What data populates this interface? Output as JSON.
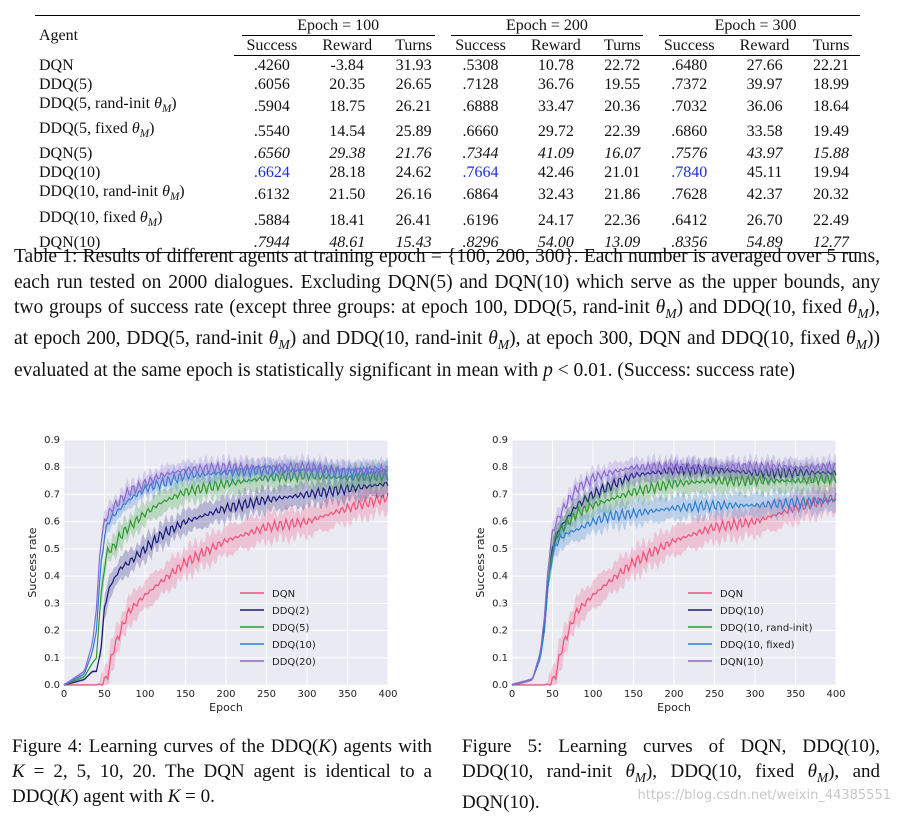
{
  "table": {
    "agent_header": "Agent",
    "groups": [
      "Epoch = 100",
      "Epoch = 200",
      "Epoch = 300"
    ],
    "subheaders": [
      "Success",
      "Reward",
      "Turns"
    ],
    "rows": [
      {
        "agent": "DQN",
        "vals": [
          ".4260",
          "-3.84",
          "31.93",
          ".5308",
          "10.78",
          "22.72",
          ".6480",
          "27.66",
          "22.21"
        ],
        "italic": false
      },
      {
        "agent": "DDQ(5)",
        "vals": [
          ".6056",
          "20.35",
          "26.65",
          ".7128",
          "36.76",
          "19.55",
          ".7372",
          "39.97",
          "18.99"
        ],
        "italic": false
      },
      {
        "agent": "DDQ(5, rand-init θ_M)",
        "vals": [
          ".5904",
          "18.75",
          "26.21",
          ".6888",
          "33.47",
          "20.36",
          ".7032",
          "36.06",
          "18.64"
        ],
        "italic": false
      },
      {
        "agent": "DDQ(5, fixed θ_M)",
        "vals": [
          ".5540",
          "14.54",
          "25.89",
          ".6660",
          "29.72",
          "22.39",
          ".6860",
          "33.58",
          "19.49"
        ],
        "italic": false
      },
      {
        "agent": "DQN(5)",
        "vals": [
          ".6560",
          "29.38",
          "21.76",
          ".7344",
          "41.09",
          "16.07",
          ".7576",
          "43.97",
          "15.88"
        ],
        "italic": true
      },
      {
        "agent": "DDQ(10)",
        "vals": [
          ".6624",
          "28.18",
          "24.62",
          ".7664",
          "42.46",
          "21.01",
          ".7840",
          "45.11",
          "19.94"
        ],
        "italic": false,
        "best": [
          0,
          3,
          6
        ]
      },
      {
        "agent": "DDQ(10, rand-init θ_M)",
        "vals": [
          ".6132",
          "21.50",
          "26.16",
          ".6864",
          "32.43",
          "21.86",
          ".7628",
          "42.37",
          "20.32"
        ],
        "italic": false
      },
      {
        "agent": "DDQ(10, fixed θ_M)",
        "vals": [
          ".5884",
          "18.41",
          "26.41",
          ".6196",
          "24.17",
          "22.36",
          ".6412",
          "26.70",
          "22.49"
        ],
        "italic": false
      },
      {
        "agent": "DQN(10)",
        "vals": [
          ".7944",
          "48.61",
          "15.43",
          ".8296",
          "54.00",
          "13.09",
          ".8356",
          "54.89",
          "12.77"
        ],
        "italic": true
      }
    ]
  },
  "caption": {
    "table": "Table 1: Results of different agents at training epoch = {100, 200, 300}. Each number is averaged over 5 runs, each run tested on 2000 dialogues. Excluding DQN(5) and DQN(10) which serve as the upper bounds, any two groups of success rate (except three groups: at epoch 100, DDQ(5, rand-init θ_M) and DDQ(10, fixed θ_M), at epoch 200, DDQ(5, rand-init θ_M) and DDQ(10, rand-init θ_M), at epoch 300, DQN and DDQ(10, fixed θ_M)) evaluated at the same epoch is statistically significant in mean with p < 0.01. (Success: success rate)",
    "fig4": "Figure 4: Learning curves of the DDQ(K) agents with K = 2, 5, 10, 20. The DQN agent is identical to a DDQ(K) agent with K = 0.",
    "fig5": "Figure 5: Learning curves of DQN, DDQ(10), DDQ(10, rand-init θ_M), DDQ(10, fixed θ_M), and DQN(10)."
  },
  "chart_data": [
    {
      "type": "line",
      "title": "",
      "xlabel": "Epoch",
      "ylabel": "Success rate",
      "xlim": [
        0,
        400
      ],
      "ylim": [
        0.0,
        0.9
      ],
      "xticks": [
        "0",
        "50",
        "100",
        "150",
        "200",
        "250",
        "300",
        "350",
        "400"
      ],
      "yticks": [
        "0.0",
        "0.1",
        "0.2",
        "0.3",
        "0.4",
        "0.5",
        "0.6",
        "0.7",
        "0.8",
        "0.9"
      ],
      "legend_position": "bottom-right",
      "series": [
        {
          "name": "DQN",
          "color": "#f0507a",
          "x": [
            0,
            40,
            50,
            55,
            60,
            70,
            80,
            100,
            120,
            150,
            200,
            250,
            300,
            350,
            400
          ],
          "y": [
            0.0,
            0.0,
            0.01,
            0.05,
            0.12,
            0.2,
            0.27,
            0.33,
            0.38,
            0.45,
            0.53,
            0.58,
            0.6,
            0.65,
            0.69
          ],
          "band": 0.05
        },
        {
          "name": "DDQ(2)",
          "color": "#1a1a7a",
          "x": [
            0,
            25,
            35,
            40,
            45,
            50,
            55,
            60,
            70,
            80,
            100,
            120,
            150,
            200,
            250,
            300,
            350,
            400
          ],
          "y": [
            0.0,
            0.02,
            0.05,
            0.05,
            0.12,
            0.28,
            0.35,
            0.38,
            0.43,
            0.45,
            0.5,
            0.55,
            0.6,
            0.65,
            0.68,
            0.7,
            0.72,
            0.74
          ],
          "band": 0.04
        },
        {
          "name": "DDQ(5)",
          "color": "#2e9a2e",
          "x": [
            0,
            25,
            35,
            40,
            45,
            50,
            55,
            60,
            70,
            80,
            100,
            120,
            150,
            200,
            250,
            300,
            350,
            400
          ],
          "y": [
            0.0,
            0.03,
            0.08,
            0.1,
            0.3,
            0.44,
            0.5,
            0.5,
            0.55,
            0.58,
            0.63,
            0.67,
            0.71,
            0.74,
            0.76,
            0.77,
            0.76,
            0.77
          ],
          "band": 0.04
        },
        {
          "name": "DDQ(10)",
          "color": "#2f7fd0",
          "x": [
            0,
            25,
            35,
            40,
            45,
            50,
            55,
            60,
            70,
            80,
            100,
            120,
            150,
            200,
            250,
            300,
            350,
            400
          ],
          "y": [
            0.0,
            0.04,
            0.12,
            0.2,
            0.42,
            0.55,
            0.6,
            0.62,
            0.65,
            0.68,
            0.72,
            0.74,
            0.77,
            0.78,
            0.79,
            0.79,
            0.78,
            0.79
          ],
          "band": 0.03
        },
        {
          "name": "DDQ(20)",
          "color": "#8a6ad0",
          "x": [
            0,
            25,
            35,
            40,
            45,
            50,
            55,
            60,
            70,
            80,
            100,
            120,
            150,
            200,
            250,
            300,
            350,
            400
          ],
          "y": [
            0.0,
            0.05,
            0.15,
            0.28,
            0.52,
            0.6,
            0.63,
            0.65,
            0.68,
            0.71,
            0.74,
            0.77,
            0.79,
            0.8,
            0.8,
            0.8,
            0.79,
            0.79
          ],
          "band": 0.03
        }
      ]
    },
    {
      "type": "line",
      "title": "",
      "xlabel": "Epoch",
      "ylabel": "Success rate",
      "xlim": [
        0,
        400
      ],
      "ylim": [
        0.0,
        0.9
      ],
      "xticks": [
        "0",
        "50",
        "100",
        "150",
        "200",
        "250",
        "300",
        "350",
        "400"
      ],
      "yticks": [
        "0.0",
        "0.1",
        "0.2",
        "0.3",
        "0.4",
        "0.5",
        "0.6",
        "0.7",
        "0.8",
        "0.9"
      ],
      "legend_position": "bottom-right",
      "series": [
        {
          "name": "DQN",
          "color": "#f0507a",
          "x": [
            0,
            40,
            50,
            55,
            60,
            70,
            80,
            100,
            120,
            150,
            200,
            250,
            300,
            350,
            400
          ],
          "y": [
            0.0,
            0.0,
            0.01,
            0.05,
            0.12,
            0.2,
            0.27,
            0.33,
            0.38,
            0.45,
            0.53,
            0.58,
            0.6,
            0.65,
            0.69
          ],
          "band": 0.05
        },
        {
          "name": "DDQ(10)",
          "color": "#1a1a7a",
          "x": [
            0,
            25,
            35,
            40,
            45,
            50,
            55,
            60,
            70,
            80,
            100,
            120,
            150,
            200,
            250,
            300,
            350,
            400
          ],
          "y": [
            0.0,
            0.02,
            0.1,
            0.22,
            0.4,
            0.5,
            0.55,
            0.58,
            0.62,
            0.66,
            0.7,
            0.73,
            0.77,
            0.79,
            0.79,
            0.78,
            0.78,
            0.78
          ],
          "band": 0.03
        },
        {
          "name": "DDQ(10, rand-init)",
          "color": "#2e9a2e",
          "x": [
            0,
            25,
            35,
            40,
            45,
            50,
            55,
            60,
            70,
            80,
            100,
            120,
            150,
            200,
            250,
            300,
            350,
            400
          ],
          "y": [
            0.0,
            0.02,
            0.1,
            0.2,
            0.38,
            0.5,
            0.55,
            0.57,
            0.6,
            0.63,
            0.66,
            0.68,
            0.71,
            0.74,
            0.75,
            0.75,
            0.75,
            0.76
          ],
          "band": 0.04
        },
        {
          "name": "DDQ(10, fixed)",
          "color": "#2f7fd0",
          "x": [
            0,
            25,
            35,
            40,
            45,
            50,
            55,
            60,
            70,
            80,
            100,
            120,
            150,
            200,
            250,
            300,
            350,
            400
          ],
          "y": [
            0.0,
            0.02,
            0.1,
            0.2,
            0.38,
            0.48,
            0.52,
            0.54,
            0.56,
            0.57,
            0.6,
            0.62,
            0.63,
            0.65,
            0.66,
            0.66,
            0.67,
            0.68
          ],
          "band": 0.04
        },
        {
          "name": "DQN(10)",
          "color": "#8a6ad0",
          "x": [
            0,
            25,
            35,
            40,
            45,
            50,
            55,
            60,
            70,
            80,
            100,
            120,
            150,
            200,
            250,
            300,
            350,
            400
          ],
          "y": [
            0.0,
            0.02,
            0.12,
            0.25,
            0.45,
            0.56,
            0.6,
            0.63,
            0.68,
            0.72,
            0.76,
            0.78,
            0.8,
            0.8,
            0.8,
            0.8,
            0.8,
            0.8
          ],
          "band": 0.03
        }
      ]
    }
  ],
  "watermark": "https://blog.csdn.net/weixin_44385551"
}
